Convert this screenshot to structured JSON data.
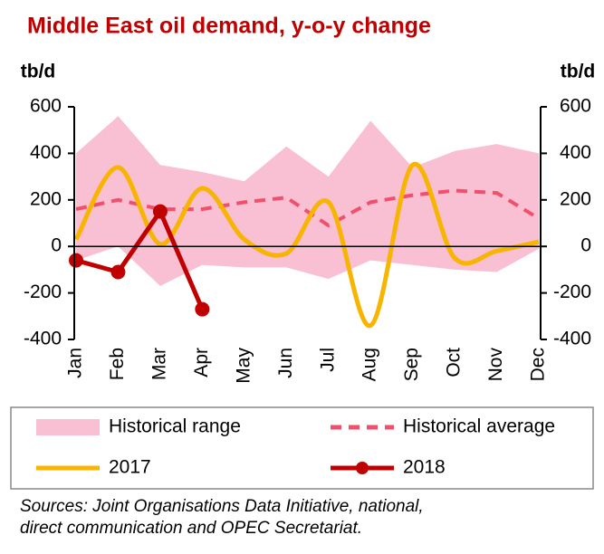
{
  "chart_data": {
    "type": "line",
    "title": "Middle East oil demand, y-o-y change",
    "y_label": "tb/d",
    "y2_label": "tb/d",
    "categories": [
      "Jan",
      "Feb",
      "Mar",
      "Apr",
      "May",
      "Jun",
      "Jul",
      "Aug",
      "Sep",
      "Oct",
      "Nov",
      "Dec"
    ],
    "series": [
      {
        "name": "Historical range",
        "color": "#f9bfd3",
        "kind": "range",
        "values": [
          400,
          560,
          350,
          320,
          280,
          430,
          300,
          540,
          340,
          410,
          440,
          400
        ],
        "low": [
          -60,
          0,
          -170,
          -80,
          -90,
          -90,
          -140,
          -60,
          -80,
          -100,
          -110,
          -10
        ]
      },
      {
        "name": "Historical average",
        "color": "#f0506e",
        "kind": "dashed",
        "values": [
          160,
          200,
          160,
          160,
          190,
          210,
          90,
          190,
          220,
          240,
          230,
          120
        ]
      },
      {
        "name": "2017",
        "color": "#f7b500",
        "kind": "smooth",
        "values": [
          30,
          340,
          10,
          250,
          30,
          -30,
          190,
          -340,
          350,
          -50,
          -20,
          20
        ]
      },
      {
        "name": "2018",
        "color": "#c00000",
        "kind": "markers",
        "values": [
          -60,
          -110,
          150,
          -270,
          null,
          null,
          null,
          null,
          null,
          null,
          null,
          null
        ]
      }
    ],
    "ylim": [
      -400,
      600
    ],
    "yticks": [
      -400,
      -200,
      0,
      200,
      400,
      600
    ],
    "y2lim": [
      -400,
      600
    ],
    "y2ticks": [
      -400,
      -200,
      0,
      200,
      400,
      600
    ],
    "note": [
      "Sources: Joint Organisations Data Initiative, national,",
      "direct communication and OPEC Secretariat."
    ]
  }
}
